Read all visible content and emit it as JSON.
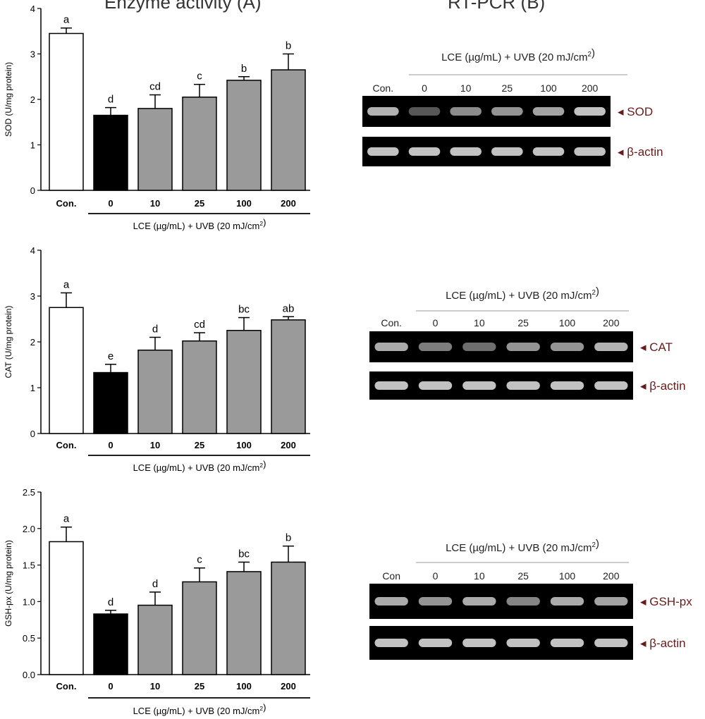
{
  "headings": {
    "left": "Enzyme activity (A)",
    "right": "RT-PCR (B)"
  },
  "chart_data": [
    {
      "type": "bar",
      "ylabel": "SOD (U/mg protein)",
      "xlabel": "LCE (µg/mL) + UVB (20 mJ/cm²)",
      "ylim": [
        0,
        4
      ],
      "yticks": [
        "0",
        "1",
        "2",
        "3",
        "4"
      ],
      "ytick_values": [
        0,
        1,
        2,
        3,
        4
      ],
      "categories": [
        "Con.",
        "0",
        "10",
        "25",
        "100",
        "200"
      ],
      "values": [
        3.45,
        1.65,
        1.8,
        2.05,
        2.42,
        2.65
      ],
      "errors": [
        0.12,
        0.17,
        0.3,
        0.28,
        0.08,
        0.35
      ],
      "letters": [
        "a",
        "d",
        "cd",
        "c",
        "b",
        "b"
      ],
      "fills": [
        "#ffffff",
        "#000000",
        "#9a9a9a",
        "#9a9a9a",
        "#9a9a9a",
        "#9a9a9a"
      ]
    },
    {
      "type": "bar",
      "ylabel": "CAT (U/mg protein)",
      "xlabel": "LCE (µg/mL) + UVB (20 mJ/cm²)",
      "ylim": [
        0,
        4
      ],
      "yticks": [
        "0",
        "1",
        "2",
        "3",
        "4"
      ],
      "ytick_values": [
        0,
        1,
        2,
        3,
        4
      ],
      "categories": [
        "Con.",
        "0",
        "10",
        "25",
        "100",
        "200"
      ],
      "values": [
        2.75,
        1.33,
        1.82,
        2.02,
        2.25,
        2.48
      ],
      "errors": [
        0.32,
        0.18,
        0.28,
        0.18,
        0.28,
        0.07
      ],
      "letters": [
        "a",
        "e",
        "d",
        "cd",
        "bc",
        "ab"
      ],
      "fills": [
        "#ffffff",
        "#000000",
        "#9a9a9a",
        "#9a9a9a",
        "#9a9a9a",
        "#9a9a9a"
      ]
    },
    {
      "type": "bar",
      "ylabel": "GSH-px (U/mg protein)",
      "xlabel": "LCE (µg/mL) + UVB (20 mJ/cm²)",
      "ylim": [
        0,
        2.5
      ],
      "yticks": [
        "0.0",
        "0.5",
        "1.0",
        "1.5",
        "2.0",
        "2.5"
      ],
      "ytick_values": [
        0,
        0.5,
        1,
        1.5,
        2,
        2.5
      ],
      "categories": [
        "Con.",
        "0",
        "10",
        "25",
        "100",
        "200"
      ],
      "values": [
        1.82,
        0.83,
        0.95,
        1.27,
        1.41,
        1.54
      ],
      "errors": [
        0.2,
        0.05,
        0.18,
        0.19,
        0.13,
        0.22
      ],
      "letters": [
        "a",
        "d",
        "d",
        "c",
        "bc",
        "b"
      ],
      "fills": [
        "#ffffff",
        "#000000",
        "#9a9a9a",
        "#9a9a9a",
        "#9a9a9a",
        "#9a9a9a"
      ]
    }
  ],
  "blots": [
    {
      "header": "LCE (µg/mL) + UVB (20 mJ/cm²)",
      "lanes": [
        "Con.",
        "0",
        "10",
        "25",
        "100",
        "200"
      ],
      "genes": [
        "SOD",
        "β-actin"
      ]
    },
    {
      "header": "LCE (µg/mL) + UVB (20 mJ/cm²)",
      "lanes": [
        "Con.",
        "0",
        "10",
        "25",
        "100",
        "200"
      ],
      "genes": [
        "CAT",
        "β-actin"
      ]
    },
    {
      "header": "LCE (µg/mL) + UVB (20 mJ/cm²)",
      "lanes": [
        "Con",
        "0",
        "10",
        "25",
        "100",
        "200"
      ],
      "genes": [
        "GSH-px",
        "β-actin"
      ]
    }
  ],
  "colors": {
    "control_bar": "#ffffff",
    "uvb_bar": "#000000",
    "treated_bar": "#9a9a9a",
    "gel_background": "#000000",
    "gel_band": "#cfcfcf",
    "blot_text": "#6b1a1a"
  }
}
